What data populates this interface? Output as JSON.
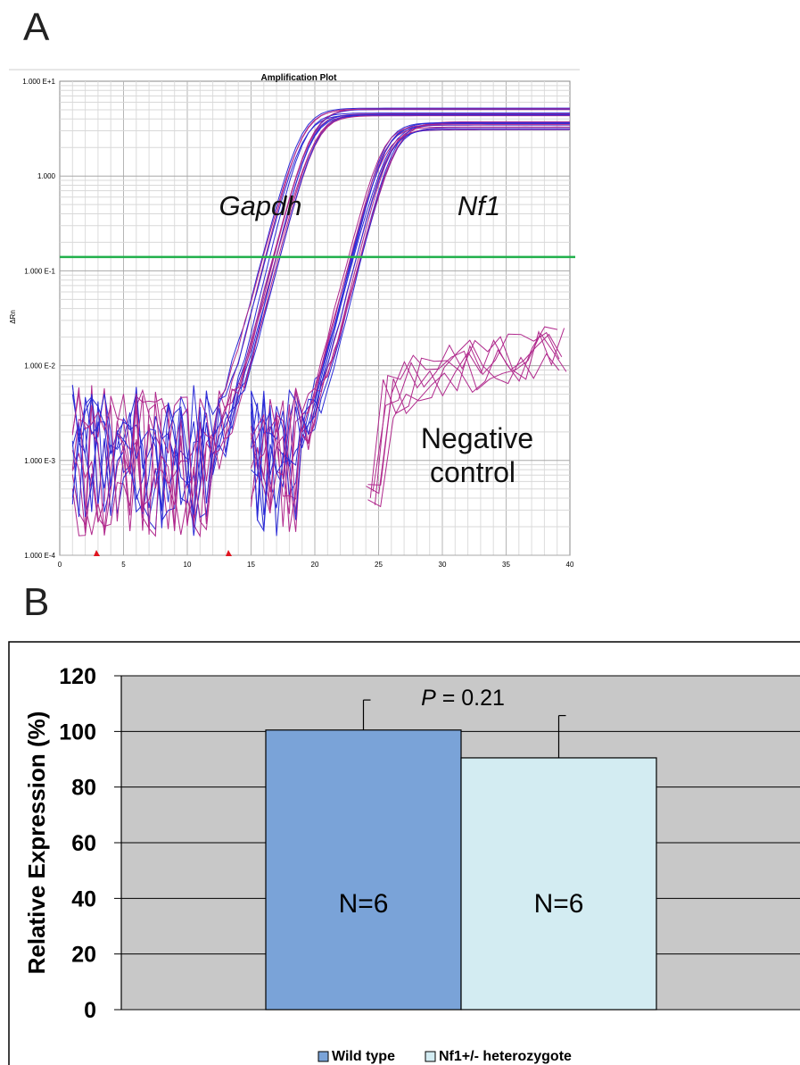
{
  "panel_a": {
    "letter": "A",
    "chart_data": {
      "type": "line",
      "title": "Amplification Plot",
      "ylabel": "ΔRn",
      "xlabel": "",
      "y_scale": "log",
      "ylim": [
        0.0001,
        10
      ],
      "xlim": [
        0,
        40
      ],
      "y_tick_labels": [
        "1.000 E+1",
        "1.000",
        "1.000 E-1",
        "1.000 E-2",
        "1.000 E-3",
        "1.000 E-4"
      ],
      "y_tick_values": [
        10,
        1,
        0.1,
        0.01,
        0.001,
        0.0001
      ],
      "x_ticks": [
        0,
        5,
        10,
        15,
        20,
        25,
        30,
        35,
        40
      ],
      "grid": true,
      "threshold": 0.14,
      "threshold_color": "#22b14c",
      "series": [
        {
          "name": "Gapdh",
          "baseline": 0.001,
          "ct": 19.5,
          "plateau": 4.8,
          "replicates": 14,
          "noise_start": 1,
          "noise_end": 15
        },
        {
          "name": "Nf1",
          "baseline": 0.001,
          "ct": 25.8,
          "plateau": 3.4,
          "replicates": 14,
          "noise_start": 15,
          "noise_end": 22
        },
        {
          "name": "Negative control",
          "start": 24,
          "end": 40,
          "level_min": 0.004,
          "level_max": 0.015,
          "replicates": 6
        }
      ],
      "annotations": [
        {
          "text": "Gapdh",
          "style": "italic"
        },
        {
          "text": "Nf1",
          "style": "italic"
        },
        {
          "text": "Negative",
          "style": "normal"
        },
        {
          "text": "control",
          "style": "normal"
        }
      ],
      "series_colors": [
        "#2b2bd6",
        "#b0288c"
      ]
    }
  },
  "panel_b": {
    "letter": "B",
    "chart_data": {
      "type": "bar",
      "ylabel": "Relative Expression (%)",
      "xlabel": "",
      "ylim": [
        0,
        120
      ],
      "y_ticks": [
        0,
        20,
        40,
        60,
        80,
        100,
        120
      ],
      "grid": true,
      "legend_position": "bottom",
      "series": [
        {
          "name": "Wild type",
          "value": 100.5,
          "error": 10.8,
          "label": "N=6",
          "color": "#7aa3d8"
        },
        {
          "name": "Nf1+/- heterozygote",
          "value": 90.5,
          "error": 15.2,
          "label": "N=6",
          "color": "#d3ecf2"
        }
      ],
      "annotation": {
        "prefix": "P",
        "text": " = 0.21"
      },
      "plot_bg": "#c8c8c8"
    }
  }
}
